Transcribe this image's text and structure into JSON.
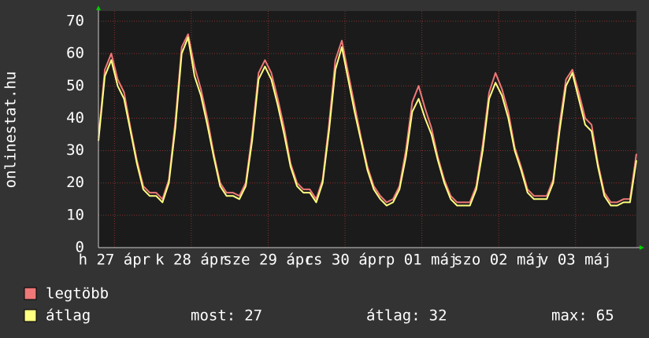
{
  "chart_data": {
    "type": "line",
    "ylabel": "onlinestat.hu",
    "x": [
      7,
      9,
      11,
      13,
      15,
      17,
      19,
      21,
      23,
      25,
      27,
      29,
      31,
      33,
      35,
      37,
      39,
      41,
      43,
      45,
      47,
      49,
      51,
      53,
      55,
      57,
      59,
      61,
      63,
      65,
      67,
      69,
      71,
      73,
      75,
      77,
      79,
      81,
      83,
      85,
      87,
      89,
      91,
      93,
      95,
      97,
      99,
      101,
      103,
      105,
      107,
      109,
      111,
      113,
      115,
      117,
      119,
      121,
      123,
      125,
      127,
      129,
      131,
      133,
      135,
      137,
      139,
      141,
      143,
      145,
      147,
      149,
      151,
      153,
      155,
      157,
      159,
      161,
      163,
      165,
      167,
      169,
      171,
      173,
      175
    ],
    "series": [
      {
        "name": "legtöbb",
        "color": "#f07878",
        "values": [
          34,
          55,
          60,
          52,
          48,
          37,
          27,
          19,
          17,
          17,
          15,
          21,
          39,
          62,
          66,
          56,
          49,
          40,
          29,
          20,
          17,
          17,
          16,
          20,
          35,
          54,
          58,
          54,
          46,
          37,
          26,
          20,
          18,
          18,
          15,
          21,
          38,
          58,
          64,
          54,
          44,
          34,
          25,
          19,
          16,
          14,
          15,
          19,
          30,
          45,
          50,
          43,
          37,
          28,
          21,
          16,
          14,
          14,
          14,
          19,
          32,
          48,
          54,
          49,
          42,
          31,
          25,
          18,
          16,
          16,
          16,
          21,
          38,
          52,
          55,
          48,
          40,
          38,
          26,
          17,
          14,
          14,
          15,
          15,
          29
        ]
      },
      {
        "name": "átlag",
        "color": "#ffff80",
        "values": [
          33,
          53,
          58,
          50,
          46,
          36,
          26,
          18,
          16,
          16,
          14,
          20,
          37,
          60,
          65,
          53,
          47,
          38,
          28,
          19,
          16,
          16,
          15,
          19,
          33,
          52,
          56,
          52,
          44,
          35,
          25,
          19,
          17,
          17,
          14,
          20,
          36,
          55,
          62,
          52,
          42,
          33,
          24,
          18,
          15,
          13,
          14,
          18,
          28,
          42,
          46,
          40,
          35,
          27,
          20,
          15,
          13,
          13,
          13,
          18,
          30,
          46,
          51,
          47,
          40,
          30,
          24,
          17,
          15,
          15,
          15,
          20,
          36,
          50,
          54,
          46,
          38,
          36,
          25,
          16,
          13,
          13,
          14,
          14,
          27
        ]
      }
    ],
    "xlim": [
      7,
      175
    ],
    "xticks": [
      {
        "value": 12,
        "label": "h 27 ápr"
      },
      {
        "value": 36,
        "label": "k 28 ápr"
      },
      {
        "value": 60,
        "label": "sze 29 ápr"
      },
      {
        "value": 84,
        "label": "cs 30 ápr"
      },
      {
        "value": 108,
        "label": "p 01 máj"
      },
      {
        "value": 132,
        "label": "szo 02 máj"
      },
      {
        "value": 156,
        "label": "v 03 máj"
      }
    ],
    "ylim": [
      0,
      70
    ],
    "yticks": [
      0,
      10,
      20,
      30,
      40,
      50,
      60,
      70
    ],
    "grid": true,
    "stats": [
      {
        "label": "most:",
        "value": 27
      },
      {
        "label": "átlag:",
        "value": 32
      },
      {
        "label": "max:",
        "value": 65
      }
    ]
  }
}
